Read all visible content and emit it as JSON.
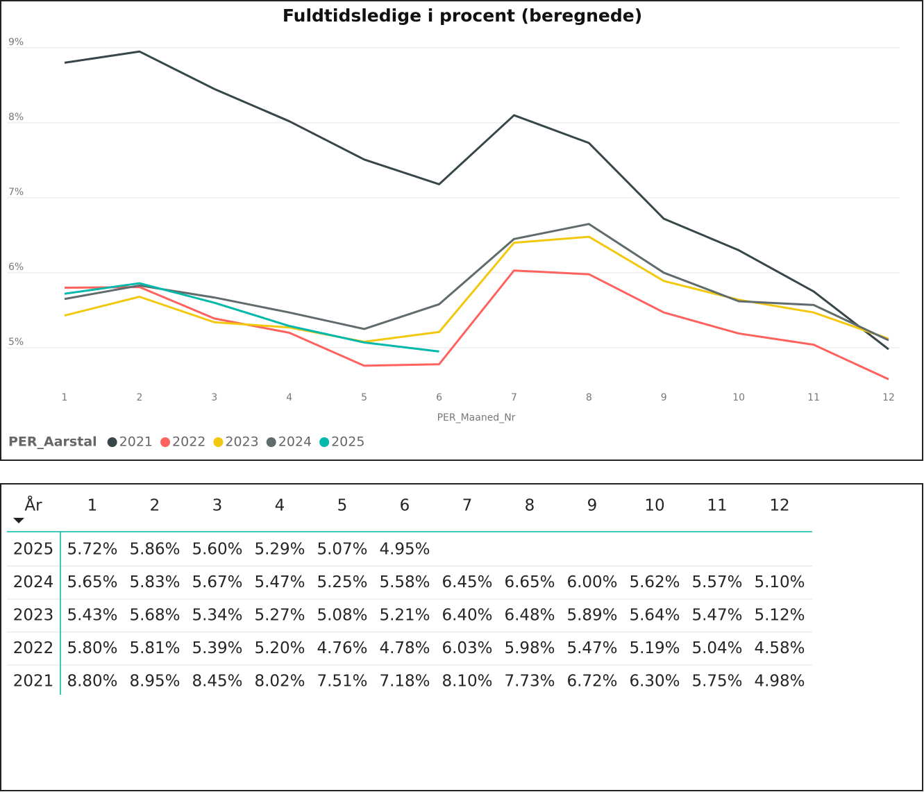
{
  "chart_data": {
    "type": "line",
    "title": "Fuldtidsledige i procent (beregnede)",
    "x_label": "PER_Maaned_Nr",
    "legend_title": "PER_Aarstal",
    "legend": "bottom-left",
    "grid": true,
    "categories": [
      "1",
      "2",
      "3",
      "4",
      "5",
      "6",
      "7",
      "8",
      "9",
      "10",
      "11",
      "12"
    ],
    "ylim": [
      4.5,
      9.1
    ],
    "yticks": [
      {
        "value": 5,
        "label": "5%"
      },
      {
        "value": 6,
        "label": "6%"
      },
      {
        "value": 7,
        "label": "7%"
      },
      {
        "value": 8,
        "label": "8%"
      },
      {
        "value": 9,
        "label": "9%"
      }
    ],
    "series": [
      {
        "name": "2021",
        "color": "#374649",
        "values": [
          8.8,
          8.95,
          8.45,
          8.02,
          7.51,
          7.18,
          8.1,
          7.73,
          6.72,
          6.3,
          5.75,
          4.98
        ]
      },
      {
        "name": "2022",
        "color": "#FD625E",
        "values": [
          5.8,
          5.81,
          5.39,
          5.2,
          4.76,
          4.78,
          6.03,
          5.98,
          5.47,
          5.19,
          5.04,
          4.58
        ]
      },
      {
        "name": "2023",
        "color": "#F2C80F",
        "values": [
          5.43,
          5.68,
          5.34,
          5.27,
          5.08,
          5.21,
          6.4,
          6.48,
          5.89,
          5.64,
          5.47,
          5.12
        ]
      },
      {
        "name": "2024",
        "color": "#5F6B6D",
        "values": [
          5.65,
          5.83,
          5.67,
          5.47,
          5.25,
          5.58,
          6.45,
          6.65,
          6.0,
          5.62,
          5.57,
          5.1
        ]
      },
      {
        "name": "2025",
        "color": "#01B8AA",
        "values": [
          5.72,
          5.86,
          5.6,
          5.29,
          5.07,
          4.95,
          null,
          null,
          null,
          null,
          null,
          null
        ]
      }
    ]
  },
  "table": {
    "header": [
      "År",
      "1",
      "2",
      "3",
      "4",
      "5",
      "6",
      "7",
      "8",
      "9",
      "10",
      "11",
      "12"
    ],
    "rows": [
      {
        "year": "2025",
        "values": [
          "5.72%",
          "5.86%",
          "5.60%",
          "5.29%",
          "5.07%",
          "4.95%"
        ]
      },
      {
        "year": "2024",
        "values": [
          "5.65%",
          "5.83%",
          "5.67%",
          "5.47%",
          "5.25%",
          "5.58%",
          "6.45%",
          "6.65%",
          "6.00%",
          "5.62%",
          "5.57%",
          "5.10%"
        ]
      },
      {
        "year": "2023",
        "values": [
          "5.43%",
          "5.68%",
          "5.34%",
          "5.27%",
          "5.08%",
          "5.21%",
          "6.40%",
          "6.48%",
          "5.89%",
          "5.64%",
          "5.47%",
          "5.12%"
        ]
      },
      {
        "year": "2022",
        "values": [
          "5.80%",
          "5.81%",
          "5.39%",
          "5.20%",
          "4.76%",
          "4.78%",
          "6.03%",
          "5.98%",
          "5.47%",
          "5.19%",
          "5.04%",
          "4.58%"
        ]
      },
      {
        "year": "2021",
        "values": [
          "8.80%",
          "8.95%",
          "8.45%",
          "8.02%",
          "7.51%",
          "7.18%",
          "8.10%",
          "7.73%",
          "6.72%",
          "6.30%",
          "5.75%",
          "4.98%"
        ]
      }
    ]
  }
}
